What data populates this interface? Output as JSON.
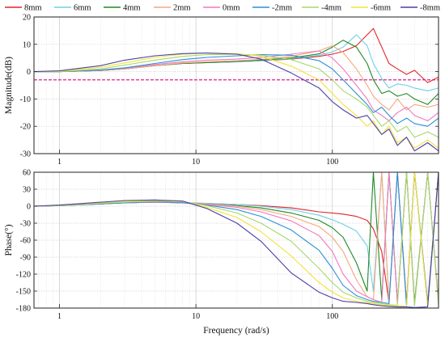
{
  "chart_data": [
    {
      "type": "line",
      "panel": "magnitude",
      "ylabel": "Magnitude(dB)",
      "xlabel": "",
      "x_scale": "log",
      "xlim": [
        0.65,
        600
      ],
      "ylim": [
        -30,
        20
      ],
      "yticks": [
        20,
        10,
        0,
        -10,
        -20,
        -30
      ],
      "xticks": [
        1,
        10,
        100
      ],
      "grid": true,
      "reference_line": {
        "y": -3,
        "color": "#e0208c",
        "style": "dashed"
      },
      "x": [
        0.65,
        1,
        2,
        3,
        5,
        8,
        12,
        20,
        30,
        50,
        80,
        100,
        120,
        150,
        180,
        200,
        230,
        260,
        300,
        350,
        400,
        500,
        600
      ],
      "series": [
        {
          "name": "8mm",
          "color": "#e0262b",
          "values": [
            0,
            0,
            0.4,
            1.0,
            2.2,
            3.0,
            3.3,
            3.6,
            4.0,
            4.6,
            5.6,
            6.4,
            7.4,
            9.5,
            13.5,
            15.8,
            9.0,
            3.0,
            1.0,
            -1.0,
            0.5,
            -4.0,
            -2.0
          ]
        },
        {
          "name": "6mm",
          "color": "#6ecfe8",
          "values": [
            0,
            0,
            0.4,
            1.0,
            2.2,
            3.0,
            3.3,
            3.6,
            4.0,
            4.8,
            6.0,
            7.2,
            9.0,
            13.5,
            9.5,
            3.0,
            -2.5,
            -6.0,
            -4.5,
            -5.0,
            -6.0,
            -7.0,
            -6.0
          ]
        },
        {
          "name": "4mm",
          "color": "#1e8a25",
          "values": [
            0,
            0,
            0.4,
            1.0,
            2.2,
            3.0,
            3.3,
            3.8,
            4.2,
            5.0,
            6.5,
            9.0,
            11.5,
            9.0,
            3.0,
            -3.0,
            -8.0,
            -7.0,
            -9.0,
            -8.0,
            -10.0,
            -12.0,
            -8.0
          ]
        },
        {
          "name": "2mm",
          "color": "#f4a87c",
          "values": [
            0,
            0,
            0.4,
            1.0,
            2.2,
            3.2,
            3.6,
            4.0,
            4.5,
            5.6,
            7.6,
            9.5,
            7.0,
            1.0,
            -5.0,
            -9.0,
            -12.0,
            -14.0,
            -10.0,
            -14.0,
            -12.0,
            -13.0,
            -12.0
          ]
        },
        {
          "name": "0mm",
          "color": "#f078c0",
          "values": [
            0,
            0,
            0.5,
            1.2,
            2.6,
            3.6,
            4.2,
            4.6,
            5.2,
            6.4,
            7.6,
            5.0,
            1.0,
            -5.0,
            -10.0,
            -14.0,
            -16.0,
            -18.0,
            -15.0,
            -13.0,
            -16.0,
            -18.0,
            -15.0
          ]
        },
        {
          "name": "-2mm",
          "color": "#2a8fd8",
          "values": [
            0,
            0,
            0.6,
            1.4,
            3.0,
            4.4,
            5.2,
            5.8,
            6.2,
            6.0,
            4.0,
            1.0,
            -3.0,
            -8.0,
            -12.0,
            -15.0,
            -13.0,
            -16.0,
            -19.0,
            -17.0,
            -19.0,
            -20.0,
            -17.0
          ]
        },
        {
          "name": "-4mm",
          "color": "#a6d86a",
          "values": [
            0,
            0,
            1.0,
            2.4,
            4.2,
            5.6,
            6.2,
            6.4,
            6.0,
            4.4,
            1.0,
            -3.0,
            -7.0,
            -10.0,
            -13.0,
            -16.0,
            -20.0,
            -18.0,
            -22.0,
            -20.0,
            -24.0,
            -22.0,
            -24.0
          ]
        },
        {
          "name": "-6mm",
          "color": "#f2e23a",
          "values": [
            0,
            0.2,
            1.6,
            3.2,
            5.2,
            6.4,
            6.8,
            6.6,
            5.6,
            2.0,
            -3.0,
            -8.0,
            -12.0,
            -16.0,
            -20.0,
            -18.0,
            -23.0,
            -20.0,
            -26.0,
            -24.0,
            -28.0,
            -25.0,
            -28.0
          ]
        },
        {
          "name": "-8mm",
          "color": "#4a3fa6",
          "values": [
            0,
            0.3,
            2.2,
            4.2,
            5.8,
            6.6,
            6.8,
            6.4,
            4.6,
            -0.5,
            -6.0,
            -11.0,
            -14.0,
            -17.0,
            -16.0,
            -19.0,
            -23.0,
            -21.0,
            -27.0,
            -24.0,
            -29.0,
            -26.0,
            -29.0
          ]
        }
      ]
    },
    {
      "type": "line",
      "panel": "phase",
      "ylabel": "Phase(°)",
      "xlabel": "Frequency (rad/s)",
      "x_scale": "log",
      "xlim": [
        0.65,
        600
      ],
      "ylim": [
        -180,
        60
      ],
      "yticks": [
        60,
        30,
        0,
        -30,
        -60,
        -90,
        -120,
        -150,
        -180
      ],
      "xticks": [
        1,
        10,
        100
      ],
      "grid": true,
      "x": [
        0.65,
        1,
        2,
        3,
        5,
        8,
        12,
        20,
        30,
        50,
        80,
        100,
        120,
        150,
        180,
        200,
        230,
        260,
        300,
        350,
        400,
        500,
        600
      ],
      "series": [
        {
          "name": "8mm",
          "color": "#e0262b",
          "values": [
            0,
            1,
            4,
            6,
            7,
            6,
            5,
            3,
            1,
            -3,
            -10,
            -12,
            -14,
            -18,
            -25,
            -40,
            -80,
            -170,
            60,
            -170,
            60,
            -175,
            60
          ]
        },
        {
          "name": "6mm",
          "color": "#6ecfe8",
          "values": [
            0,
            1,
            4,
            6,
            7,
            6,
            5,
            3,
            0,
            -6,
            -16,
            -24,
            -32,
            -44,
            -70,
            -150,
            60,
            -170,
            60,
            -175,
            60,
            -170,
            60
          ]
        },
        {
          "name": "4mm",
          "color": "#1e8a25",
          "values": [
            0,
            1,
            4,
            6,
            7,
            6,
            4,
            1,
            -3,
            -12,
            -25,
            -38,
            -55,
            -100,
            -150,
            60,
            -165,
            60,
            -170,
            60,
            -170,
            60,
            -170
          ]
        },
        {
          "name": "2mm",
          "color": "#f4a87c",
          "values": [
            0,
            1,
            4,
            6,
            7,
            6,
            4,
            0,
            -6,
            -18,
            -36,
            -55,
            -80,
            -130,
            -160,
            -165,
            60,
            -170,
            60,
            -175,
            60,
            -170,
            60
          ]
        },
        {
          "name": "0mm",
          "color": "#f078c0",
          "values": [
            0,
            1,
            4,
            6,
            7,
            6,
            3,
            -2,
            -10,
            -26,
            -52,
            -80,
            -120,
            -150,
            -160,
            -165,
            -170,
            60,
            -172,
            60,
            -175,
            60,
            -170
          ]
        },
        {
          "name": "-2mm",
          "color": "#2a8fd8",
          "values": [
            0,
            1,
            4,
            6,
            8,
            6,
            2,
            -6,
            -18,
            -42,
            -78,
            -110,
            -140,
            -158,
            -165,
            -168,
            -170,
            -172,
            60,
            -175,
            60,
            -172,
            60
          ]
        },
        {
          "name": "-4mm",
          "color": "#a6d86a",
          "values": [
            0,
            1,
            5,
            7,
            9,
            8,
            1,
            -12,
            -30,
            -62,
            -110,
            -135,
            -152,
            -162,
            -168,
            -170,
            -172,
            -174,
            -175,
            60,
            -176,
            60,
            -175
          ]
        },
        {
          "name": "-6mm",
          "color": "#f2e23a",
          "values": [
            0,
            2,
            6,
            9,
            10,
            8,
            -2,
            -20,
            -45,
            -88,
            -135,
            -152,
            -162,
            -168,
            -170,
            -172,
            -174,
            -176,
            -176,
            -177,
            60,
            -178,
            60
          ]
        },
        {
          "name": "-8mm",
          "color": "#4a3fa6",
          "values": [
            0,
            2,
            7,
            10,
            11,
            9,
            -4,
            -30,
            -62,
            -118,
            -152,
            -162,
            -168,
            -170,
            -172,
            -174,
            -176,
            -177,
            -178,
            -178,
            -179,
            -178,
            60
          ]
        }
      ]
    }
  ]
}
